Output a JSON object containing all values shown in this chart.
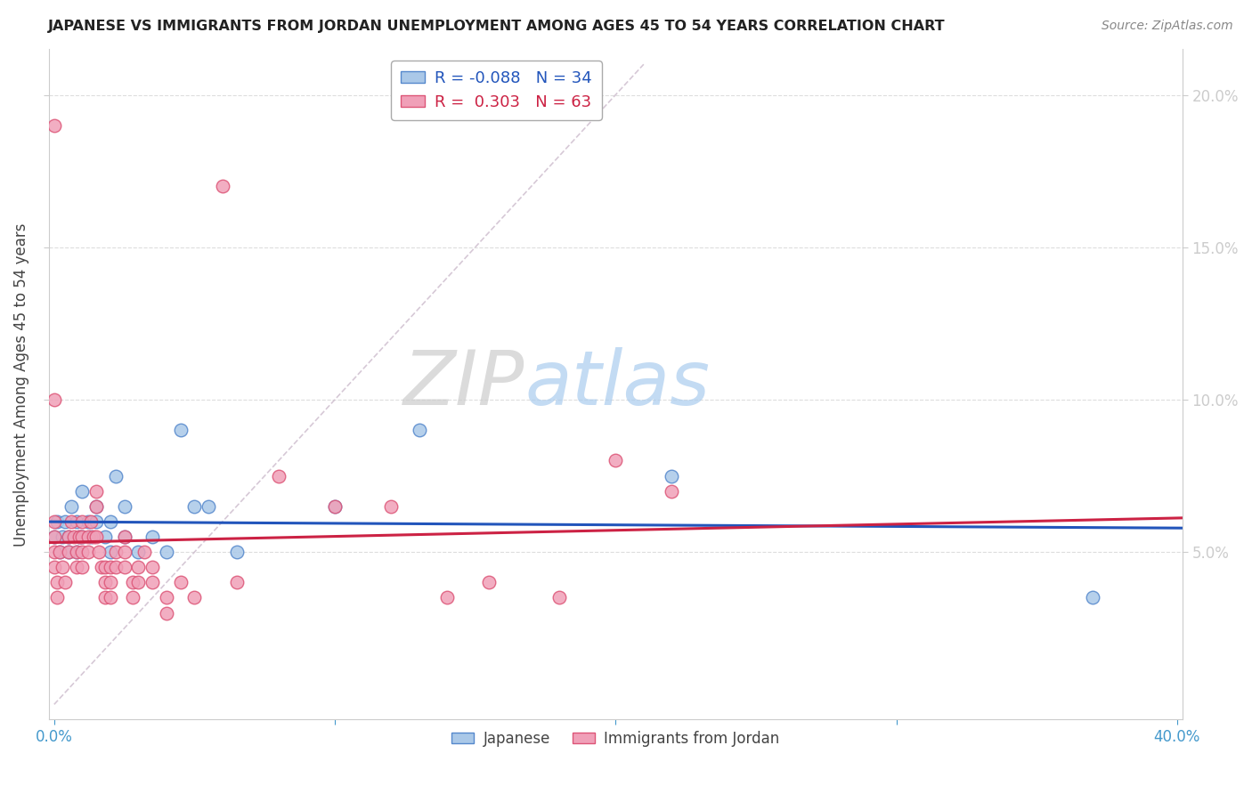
{
  "title": "JAPANESE VS IMMIGRANTS FROM JORDAN UNEMPLOYMENT AMONG AGES 45 TO 54 YEARS CORRELATION CHART",
  "source": "Source: ZipAtlas.com",
  "ylabel": "Unemployment Among Ages 45 to 54 years",
  "xlim": [
    -0.002,
    0.402
  ],
  "ylim": [
    -0.005,
    0.215
  ],
  "ytick_positions": [
    0.05,
    0.1,
    0.15,
    0.2
  ],
  "ytick_labels": [
    "5.0%",
    "10.0%",
    "15.0%",
    "20.0%"
  ],
  "xtick_positions": [
    0.0,
    0.1,
    0.2,
    0.3,
    0.4
  ],
  "xtick_labels": [
    "0.0%",
    "",
    "",
    "",
    "40.0%"
  ],
  "japanese_color": "#aac8e8",
  "jordan_color": "#f0a0b8",
  "japanese_edge": "#5588cc",
  "jordan_edge": "#dd5577",
  "trend_japanese_color": "#2255bb",
  "trend_jordan_color": "#cc2244",
  "diagonal_color": "#ccbbcc",
  "watermark_zip": "ZIP",
  "watermark_atlas": "atlas",
  "japanese_x": [
    0.0,
    0.001,
    0.002,
    0.003,
    0.004,
    0.005,
    0.005,
    0.006,
    0.008,
    0.008,
    0.009,
    0.01,
    0.01,
    0.012,
    0.013,
    0.015,
    0.015,
    0.018,
    0.02,
    0.02,
    0.022,
    0.025,
    0.025,
    0.03,
    0.035,
    0.04,
    0.045,
    0.05,
    0.055,
    0.065,
    0.1,
    0.13,
    0.22,
    0.37
  ],
  "japanese_y": [
    0.055,
    0.06,
    0.05,
    0.055,
    0.06,
    0.05,
    0.055,
    0.065,
    0.05,
    0.06,
    0.055,
    0.055,
    0.07,
    0.06,
    0.055,
    0.06,
    0.065,
    0.055,
    0.05,
    0.06,
    0.075,
    0.055,
    0.065,
    0.05,
    0.055,
    0.05,
    0.09,
    0.065,
    0.065,
    0.05,
    0.065,
    0.09,
    0.075,
    0.035
  ],
  "jordan_x": [
    0.0,
    0.0,
    0.0,
    0.0,
    0.0,
    0.0,
    0.001,
    0.001,
    0.002,
    0.003,
    0.004,
    0.005,
    0.005,
    0.006,
    0.007,
    0.008,
    0.008,
    0.009,
    0.01,
    0.01,
    0.01,
    0.01,
    0.012,
    0.012,
    0.013,
    0.014,
    0.015,
    0.015,
    0.015,
    0.016,
    0.017,
    0.018,
    0.018,
    0.018,
    0.02,
    0.02,
    0.02,
    0.022,
    0.022,
    0.025,
    0.025,
    0.025,
    0.028,
    0.028,
    0.03,
    0.03,
    0.032,
    0.035,
    0.035,
    0.04,
    0.04,
    0.045,
    0.05,
    0.06,
    0.065,
    0.08,
    0.1,
    0.12,
    0.14,
    0.155,
    0.18,
    0.2,
    0.22
  ],
  "jordan_y": [
    0.19,
    0.1,
    0.06,
    0.055,
    0.05,
    0.045,
    0.04,
    0.035,
    0.05,
    0.045,
    0.04,
    0.055,
    0.05,
    0.06,
    0.055,
    0.05,
    0.045,
    0.055,
    0.06,
    0.055,
    0.05,
    0.045,
    0.055,
    0.05,
    0.06,
    0.055,
    0.07,
    0.065,
    0.055,
    0.05,
    0.045,
    0.045,
    0.04,
    0.035,
    0.045,
    0.04,
    0.035,
    0.05,
    0.045,
    0.055,
    0.05,
    0.045,
    0.04,
    0.035,
    0.045,
    0.04,
    0.05,
    0.045,
    0.04,
    0.035,
    0.03,
    0.04,
    0.035,
    0.17,
    0.04,
    0.075,
    0.065,
    0.065,
    0.035,
    0.04,
    0.035,
    0.08,
    0.07
  ]
}
